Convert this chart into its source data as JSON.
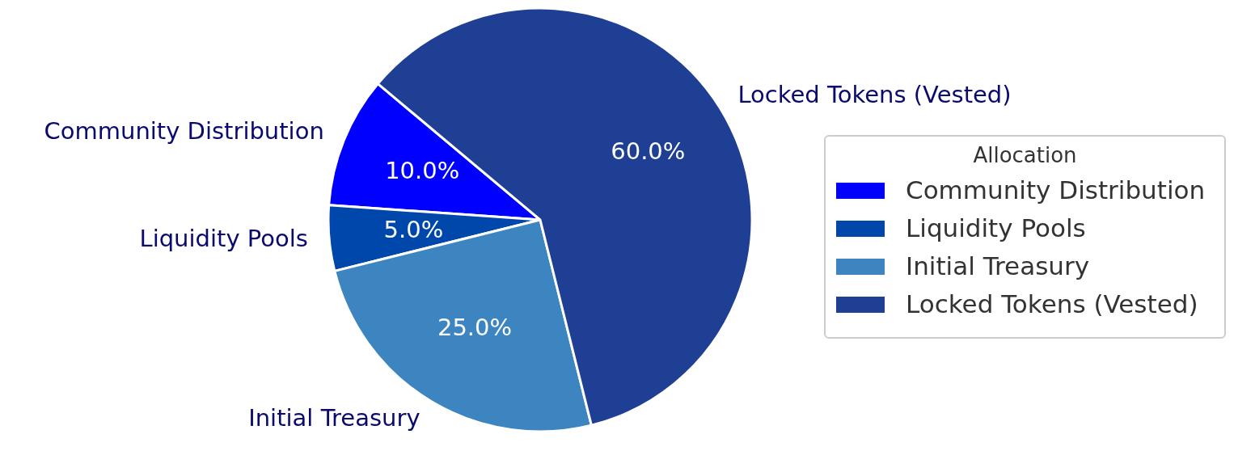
{
  "chart_data": {
    "type": "pie",
    "legend_title": "Allocation",
    "legend": "right",
    "categories": [
      "Community Distribution",
      "Liquidity Pools",
      "Initial Treasury",
      "Locked Tokens (Vested)"
    ],
    "values": [
      10,
      5,
      25,
      60
    ],
    "value_labels": [
      "10.0%",
      "5.0%",
      "25.0%",
      "60.0%"
    ],
    "colors": [
      "#0000ff",
      "#0047ab",
      "#3d85c0",
      "#1f3f94"
    ]
  }
}
